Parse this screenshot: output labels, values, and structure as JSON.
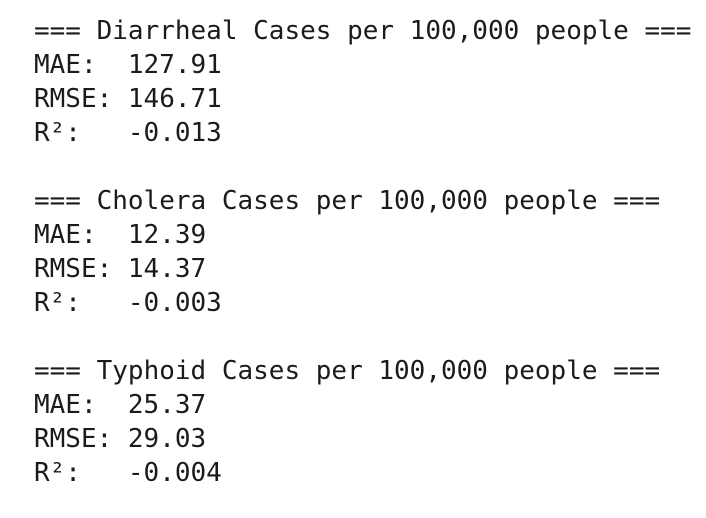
{
  "blocks": [
    {
      "title": "=== Diarrheal Cases per 100,000 people ===",
      "metrics": [
        {
          "label": "MAE:",
          "value": "127.91"
        },
        {
          "label": "RMSE:",
          "value": "146.71"
        },
        {
          "label": "R²:",
          "value": "-0.013"
        }
      ]
    },
    {
      "title": "=== Cholera Cases per 100,000 people ===",
      "metrics": [
        {
          "label": "MAE:",
          "value": "12.39"
        },
        {
          "label": "RMSE:",
          "value": "14.37"
        },
        {
          "label": "R²:",
          "value": "-0.003"
        }
      ]
    },
    {
      "title": "=== Typhoid Cases per 100,000 people ===",
      "metrics": [
        {
          "label": "MAE:",
          "value": "25.37"
        },
        {
          "label": "RMSE:",
          "value": "29.03"
        },
        {
          "label": "R²:",
          "value": "-0.004"
        }
      ]
    }
  ]
}
